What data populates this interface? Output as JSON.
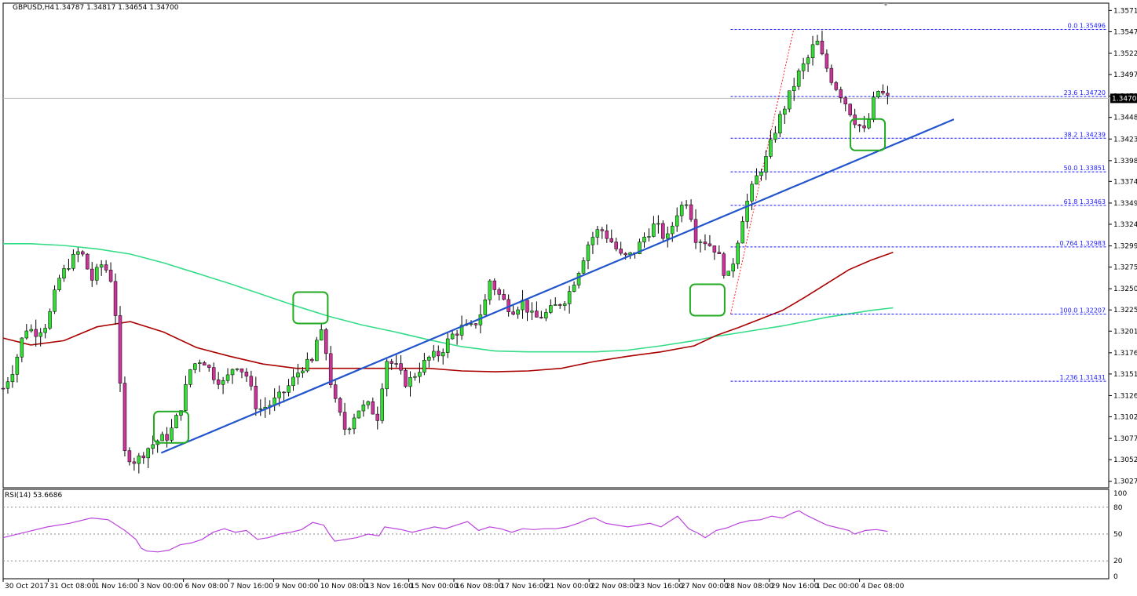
{
  "header": {
    "symbol": "GBPUSD,H4",
    "ohlc": "1.34787 1.34817 1.34654 1.34700"
  },
  "rsi": {
    "label": "RSI(14) 53.6686",
    "levels": [
      "100",
      "80",
      "50",
      "20",
      "0"
    ]
  },
  "chart_data": {
    "type": "candlestick",
    "symbol": "GBPUSD",
    "timeframe": "H4",
    "current_price": 1.347,
    "current_price_label": "1.34700",
    "price_axis_ticks": [
      "1.35715",
      "1.35470",
      "1.35220",
      "1.34975",
      "1.34725",
      "1.34480",
      "1.34230",
      "1.33980",
      "1.33740",
      "1.33490",
      "1.33245",
      "1.32995",
      "1.32750",
      "1.32500",
      "1.32255",
      "1.32010",
      "1.31760",
      "1.31515",
      "1.31265",
      "1.31020",
      "1.30770",
      "1.30525",
      "1.30275"
    ],
    "time_axis_labels": [
      "30 Oct 2017",
      "31 Oct 08:00",
      "1 Nov 16:00",
      "3 Nov 00:00",
      "6 Nov 08:00",
      "7 Nov 16:00",
      "9 Nov 00:00",
      "10 Nov 08:00",
      "13 Nov 16:00",
      "15 Nov 00:00",
      "16 Nov 08:00",
      "17 Nov 16:00",
      "21 Nov 00:00",
      "22 Nov 08:00",
      "23 Nov 16:00",
      "27 Nov 00:00",
      "28 Nov 08:00",
      "29 Nov 16:00",
      "1 Dec 00:00",
      "4 Dec 08:00"
    ],
    "ylim": [
      1.302,
      1.358
    ],
    "fibonacci": [
      {
        "label": "0.0 1.35496",
        "value": 1.35496
      },
      {
        "label": "23.6 1.34720",
        "value": 1.3472
      },
      {
        "label": "38.2 1.34239",
        "value": 1.34239
      },
      {
        "label": "50.0 1.33851",
        "value": 1.33851
      },
      {
        "label": "61.8 1.33463",
        "value": 1.33463
      },
      {
        "label": "0.764 1.32983",
        "value": 1.32983
      },
      {
        "label": "100.0 1.32207",
        "value": 1.32207
      },
      {
        "label": "1.236 1.31431",
        "value": 1.31431
      }
    ],
    "colors": {
      "bull": "#33dd33",
      "bear": "#cc3399",
      "ma_fast": "#aa0000",
      "ma_slow": "#33dd88",
      "trendline": "#2255cc",
      "fib": "#1a1aff",
      "rsi": "#bb44dd",
      "highlight": "#22aa22"
    },
    "trendline": {
      "start": [
        0.143,
        1.30603
      ],
      "end": [
        0.86,
        1.34458
      ]
    },
    "fib_swing": {
      "low": [
        0.658,
        1.32207
      ],
      "high": [
        0.715,
        1.35496
      ]
    },
    "highlight_boxes": [
      {
        "x": 0.152,
        "price": 1.309
      },
      {
        "x": 0.278,
        "price": 1.3228
      },
      {
        "x": 0.637,
        "price": 1.3237
      },
      {
        "x": 0.782,
        "price": 1.3428
      }
    ],
    "ma_fast": [
      {
        "x": 0.0,
        "y": 1.3193
      },
      {
        "x": 0.025,
        "y": 1.3185
      },
      {
        "x": 0.055,
        "y": 1.319
      },
      {
        "x": 0.085,
        "y": 1.3206
      },
      {
        "x": 0.115,
        "y": 1.3212
      },
      {
        "x": 0.145,
        "y": 1.32
      },
      {
        "x": 0.175,
        "y": 1.3182
      },
      {
        "x": 0.205,
        "y": 1.3172
      },
      {
        "x": 0.235,
        "y": 1.3163
      },
      {
        "x": 0.265,
        "y": 1.3158
      },
      {
        "x": 0.295,
        "y": 1.3158
      },
      {
        "x": 0.325,
        "y": 1.3158
      },
      {
        "x": 0.355,
        "y": 1.3158
      },
      {
        "x": 0.385,
        "y": 1.3158
      },
      {
        "x": 0.415,
        "y": 1.3155
      },
      {
        "x": 0.445,
        "y": 1.3154
      },
      {
        "x": 0.475,
        "y": 1.3155
      },
      {
        "x": 0.505,
        "y": 1.3158
      },
      {
        "x": 0.535,
        "y": 1.3166
      },
      {
        "x": 0.565,
        "y": 1.3172
      },
      {
        "x": 0.595,
        "y": 1.3177
      },
      {
        "x": 0.625,
        "y": 1.3184
      },
      {
        "x": 0.645,
        "y": 1.3196
      },
      {
        "x": 0.665,
        "y": 1.3205
      },
      {
        "x": 0.685,
        "y": 1.3215
      },
      {
        "x": 0.705,
        "y": 1.3225
      },
      {
        "x": 0.725,
        "y": 1.324
      },
      {
        "x": 0.745,
        "y": 1.3256
      },
      {
        "x": 0.765,
        "y": 1.3272
      },
      {
        "x": 0.785,
        "y": 1.3283
      },
      {
        "x": 0.805,
        "y": 1.3292
      }
    ],
    "ma_slow": [
      {
        "x": 0.0,
        "y": 1.3302
      },
      {
        "x": 0.025,
        "y": 1.3302
      },
      {
        "x": 0.055,
        "y": 1.33
      },
      {
        "x": 0.085,
        "y": 1.3296
      },
      {
        "x": 0.115,
        "y": 1.329
      },
      {
        "x": 0.145,
        "y": 1.328
      },
      {
        "x": 0.175,
        "y": 1.3268
      },
      {
        "x": 0.205,
        "y": 1.3256
      },
      {
        "x": 0.235,
        "y": 1.3243
      },
      {
        "x": 0.265,
        "y": 1.323
      },
      {
        "x": 0.295,
        "y": 1.3218
      },
      {
        "x": 0.325,
        "y": 1.3208
      },
      {
        "x": 0.355,
        "y": 1.32
      },
      {
        "x": 0.385,
        "y": 1.3191
      },
      {
        "x": 0.415,
        "y": 1.3183
      },
      {
        "x": 0.445,
        "y": 1.3178
      },
      {
        "x": 0.475,
        "y": 1.3177
      },
      {
        "x": 0.505,
        "y": 1.3177
      },
      {
        "x": 0.535,
        "y": 1.3177
      },
      {
        "x": 0.565,
        "y": 1.3179
      },
      {
        "x": 0.595,
        "y": 1.3184
      },
      {
        "x": 0.625,
        "y": 1.319
      },
      {
        "x": 0.645,
        "y": 1.3195
      },
      {
        "x": 0.665,
        "y": 1.3199
      },
      {
        "x": 0.685,
        "y": 1.3203
      },
      {
        "x": 0.705,
        "y": 1.3207
      },
      {
        "x": 0.725,
        "y": 1.3212
      },
      {
        "x": 0.745,
        "y": 1.3217
      },
      {
        "x": 0.765,
        "y": 1.3221
      },
      {
        "x": 0.785,
        "y": 1.3225
      },
      {
        "x": 0.805,
        "y": 1.3228
      }
    ],
    "price_path": [
      {
        "x": 0.0,
        "y": 1.3135
      },
      {
        "x": 0.01,
        "y": 1.316
      },
      {
        "x": 0.02,
        "y": 1.3205
      },
      {
        "x": 0.03,
        "y": 1.32
      },
      {
        "x": 0.04,
        "y": 1.321
      },
      {
        "x": 0.05,
        "y": 1.326
      },
      {
        "x": 0.06,
        "y": 1.328
      },
      {
        "x": 0.07,
        "y": 1.3295
      },
      {
        "x": 0.08,
        "y": 1.326
      },
      {
        "x": 0.09,
        "y": 1.328
      },
      {
        "x": 0.1,
        "y": 1.3255
      },
      {
        "x": 0.105,
        "y": 1.315
      },
      {
        "x": 0.11,
        "y": 1.306
      },
      {
        "x": 0.12,
        "y": 1.305
      },
      {
        "x": 0.13,
        "y": 1.3065
      },
      {
        "x": 0.14,
        "y": 1.3075
      },
      {
        "x": 0.15,
        "y": 1.308
      },
      {
        "x": 0.16,
        "y": 1.311
      },
      {
        "x": 0.17,
        "y": 1.316
      },
      {
        "x": 0.18,
        "y": 1.317
      },
      {
        "x": 0.19,
        "y": 1.315
      },
      {
        "x": 0.2,
        "y": 1.314
      },
      {
        "x": 0.21,
        "y": 1.3165
      },
      {
        "x": 0.22,
        "y": 1.315
      },
      {
        "x": 0.23,
        "y": 1.311
      },
      {
        "x": 0.24,
        "y": 1.3115
      },
      {
        "x": 0.25,
        "y": 1.3125
      },
      {
        "x": 0.26,
        "y": 1.314
      },
      {
        "x": 0.27,
        "y": 1.316
      },
      {
        "x": 0.28,
        "y": 1.3165
      },
      {
        "x": 0.285,
        "y": 1.32
      },
      {
        "x": 0.29,
        "y": 1.3195
      },
      {
        "x": 0.295,
        "y": 1.315
      },
      {
        "x": 0.3,
        "y": 1.312
      },
      {
        "x": 0.31,
        "y": 1.3085
      },
      {
        "x": 0.32,
        "y": 1.311
      },
      {
        "x": 0.33,
        "y": 1.3115
      },
      {
        "x": 0.34,
        "y": 1.31
      },
      {
        "x": 0.345,
        "y": 1.317
      },
      {
        "x": 0.355,
        "y": 1.316
      },
      {
        "x": 0.365,
        "y": 1.314
      },
      {
        "x": 0.375,
        "y": 1.3155
      },
      {
        "x": 0.385,
        "y": 1.317
      },
      {
        "x": 0.395,
        "y": 1.3175
      },
      {
        "x": 0.405,
        "y": 1.3195
      },
      {
        "x": 0.415,
        "y": 1.3205
      },
      {
        "x": 0.425,
        "y": 1.3205
      },
      {
        "x": 0.435,
        "y": 1.323
      },
      {
        "x": 0.44,
        "y": 1.326
      },
      {
        "x": 0.45,
        "y": 1.324
      },
      {
        "x": 0.46,
        "y": 1.3225
      },
      {
        "x": 0.47,
        "y": 1.3235
      },
      {
        "x": 0.48,
        "y": 1.3215
      },
      {
        "x": 0.49,
        "y": 1.322
      },
      {
        "x": 0.5,
        "y": 1.323
      },
      {
        "x": 0.51,
        "y": 1.324
      },
      {
        "x": 0.52,
        "y": 1.327
      },
      {
        "x": 0.53,
        "y": 1.3305
      },
      {
        "x": 0.54,
        "y": 1.332
      },
      {
        "x": 0.55,
        "y": 1.3305
      },
      {
        "x": 0.56,
        "y": 1.3285
      },
      {
        "x": 0.57,
        "y": 1.329
      },
      {
        "x": 0.58,
        "y": 1.331
      },
      {
        "x": 0.59,
        "y": 1.3325
      },
      {
        "x": 0.6,
        "y": 1.3305
      },
      {
        "x": 0.61,
        "y": 1.334
      },
      {
        "x": 0.62,
        "y": 1.3355
      },
      {
        "x": 0.625,
        "y": 1.331
      },
      {
        "x": 0.635,
        "y": 1.3305
      },
      {
        "x": 0.645,
        "y": 1.3295
      },
      {
        "x": 0.655,
        "y": 1.326
      },
      {
        "x": 0.66,
        "y": 1.328
      },
      {
        "x": 0.67,
        "y": 1.334
      },
      {
        "x": 0.68,
        "y": 1.3375
      },
      {
        "x": 0.69,
        "y": 1.34
      },
      {
        "x": 0.7,
        "y": 1.344
      },
      {
        "x": 0.71,
        "y": 1.347
      },
      {
        "x": 0.72,
        "y": 1.35
      },
      {
        "x": 0.73,
        "y": 1.352
      },
      {
        "x": 0.735,
        "y": 1.354
      },
      {
        "x": 0.74,
        "y": 1.352
      },
      {
        "x": 0.75,
        "y": 1.349
      },
      {
        "x": 0.76,
        "y": 1.347
      },
      {
        "x": 0.77,
        "y": 1.3445
      },
      {
        "x": 0.78,
        "y": 1.343
      },
      {
        "x": 0.79,
        "y": 1.348
      },
      {
        "x": 0.8,
        "y": 1.347
      }
    ],
    "rsi_points": [
      {
        "x": 0.0,
        "y": 46
      },
      {
        "x": 0.02,
        "y": 52
      },
      {
        "x": 0.04,
        "y": 58
      },
      {
        "x": 0.06,
        "y": 62
      },
      {
        "x": 0.08,
        "y": 68
      },
      {
        "x": 0.095,
        "y": 66
      },
      {
        "x": 0.11,
        "y": 54
      },
      {
        "x": 0.12,
        "y": 44
      },
      {
        "x": 0.125,
        "y": 34
      },
      {
        "x": 0.13,
        "y": 31
      },
      {
        "x": 0.14,
        "y": 30
      },
      {
        "x": 0.15,
        "y": 32
      },
      {
        "x": 0.16,
        "y": 38
      },
      {
        "x": 0.17,
        "y": 40
      },
      {
        "x": 0.18,
        "y": 44
      },
      {
        "x": 0.19,
        "y": 52
      },
      {
        "x": 0.2,
        "y": 56
      },
      {
        "x": 0.21,
        "y": 52
      },
      {
        "x": 0.22,
        "y": 54
      },
      {
        "x": 0.23,
        "y": 44
      },
      {
        "x": 0.24,
        "y": 46
      },
      {
        "x": 0.25,
        "y": 50
      },
      {
        "x": 0.26,
        "y": 52
      },
      {
        "x": 0.27,
        "y": 55
      },
      {
        "x": 0.28,
        "y": 63
      },
      {
        "x": 0.29,
        "y": 60
      },
      {
        "x": 0.295,
        "y": 50
      },
      {
        "x": 0.3,
        "y": 42
      },
      {
        "x": 0.31,
        "y": 44
      },
      {
        "x": 0.32,
        "y": 46
      },
      {
        "x": 0.33,
        "y": 50
      },
      {
        "x": 0.34,
        "y": 48
      },
      {
        "x": 0.345,
        "y": 58
      },
      {
        "x": 0.36,
        "y": 55
      },
      {
        "x": 0.37,
        "y": 52
      },
      {
        "x": 0.38,
        "y": 55
      },
      {
        "x": 0.39,
        "y": 58
      },
      {
        "x": 0.4,
        "y": 56
      },
      {
        "x": 0.41,
        "y": 60
      },
      {
        "x": 0.42,
        "y": 64
      },
      {
        "x": 0.43,
        "y": 54
      },
      {
        "x": 0.44,
        "y": 58
      },
      {
        "x": 0.45,
        "y": 56
      },
      {
        "x": 0.46,
        "y": 52
      },
      {
        "x": 0.47,
        "y": 56
      },
      {
        "x": 0.48,
        "y": 55
      },
      {
        "x": 0.49,
        "y": 56
      },
      {
        "x": 0.5,
        "y": 56
      },
      {
        "x": 0.51,
        "y": 58
      },
      {
        "x": 0.52,
        "y": 62
      },
      {
        "x": 0.53,
        "y": 67
      },
      {
        "x": 0.535,
        "y": 68
      },
      {
        "x": 0.545,
        "y": 62
      },
      {
        "x": 0.555,
        "y": 60
      },
      {
        "x": 0.565,
        "y": 58
      },
      {
        "x": 0.575,
        "y": 60
      },
      {
        "x": 0.585,
        "y": 62
      },
      {
        "x": 0.595,
        "y": 58
      },
      {
        "x": 0.605,
        "y": 66
      },
      {
        "x": 0.61,
        "y": 70
      },
      {
        "x": 0.62,
        "y": 56
      },
      {
        "x": 0.63,
        "y": 50
      },
      {
        "x": 0.635,
        "y": 46
      },
      {
        "x": 0.645,
        "y": 54
      },
      {
        "x": 0.655,
        "y": 57
      },
      {
        "x": 0.665,
        "y": 62
      },
      {
        "x": 0.675,
        "y": 65
      },
      {
        "x": 0.685,
        "y": 66
      },
      {
        "x": 0.695,
        "y": 70
      },
      {
        "x": 0.705,
        "y": 68
      },
      {
        "x": 0.715,
        "y": 74
      },
      {
        "x": 0.72,
        "y": 76
      },
      {
        "x": 0.725,
        "y": 72
      },
      {
        "x": 0.735,
        "y": 66
      },
      {
        "x": 0.745,
        "y": 60
      },
      {
        "x": 0.755,
        "y": 57
      },
      {
        "x": 0.765,
        "y": 54
      },
      {
        "x": 0.77,
        "y": 50
      },
      {
        "x": 0.78,
        "y": 54
      },
      {
        "x": 0.79,
        "y": 55
      },
      {
        "x": 0.8,
        "y": 53
      }
    ]
  }
}
